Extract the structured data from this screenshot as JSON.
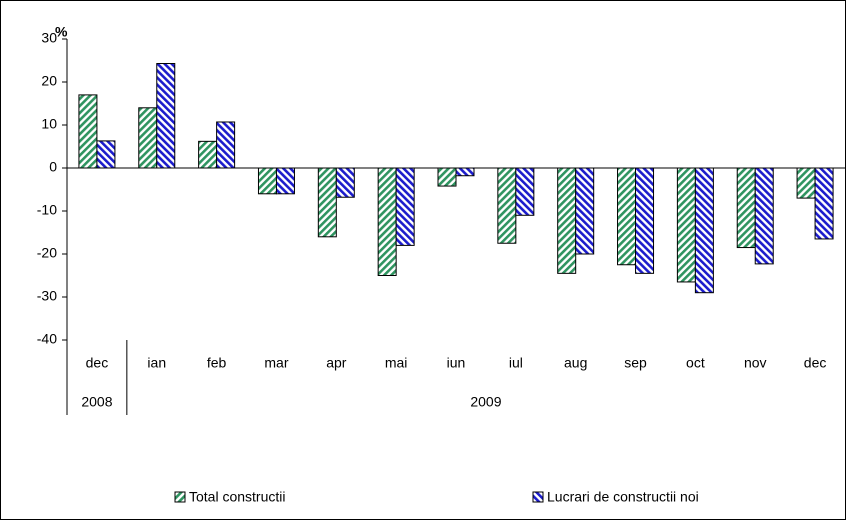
{
  "chart_data": {
    "type": "bar",
    "y_label": "%",
    "categories": [
      "dec",
      "ian",
      "feb",
      "mar",
      "apr",
      "mai",
      "iun",
      "iul",
      "aug",
      "sep",
      "oct",
      "nov",
      "dec"
    ],
    "groups": [
      {
        "label": "2008",
        "count": 1
      },
      {
        "label": "2009",
        "count": 12
      }
    ],
    "series": [
      {
        "name": "Total constructii",
        "color": "#2f9460",
        "values": [
          17,
          14,
          6.2,
          -6,
          -16,
          -25,
          -4.2,
          -17.5,
          -24.5,
          -22.5,
          -26.5,
          -18.5,
          -7
        ]
      },
      {
        "name": "Lucrari de constructii noi",
        "color": "#1c1ccc",
        "values": [
          6.3,
          24.3,
          10.7,
          -6,
          -6.8,
          -18,
          -1.8,
          -11,
          -20,
          -24.5,
          -29,
          -22.3,
          -16.5
        ]
      }
    ],
    "ylim": [
      -40,
      30
    ],
    "yticks": [
      -40,
      -30,
      -20,
      -10,
      0,
      10,
      20,
      30
    ],
    "grid": false
  }
}
